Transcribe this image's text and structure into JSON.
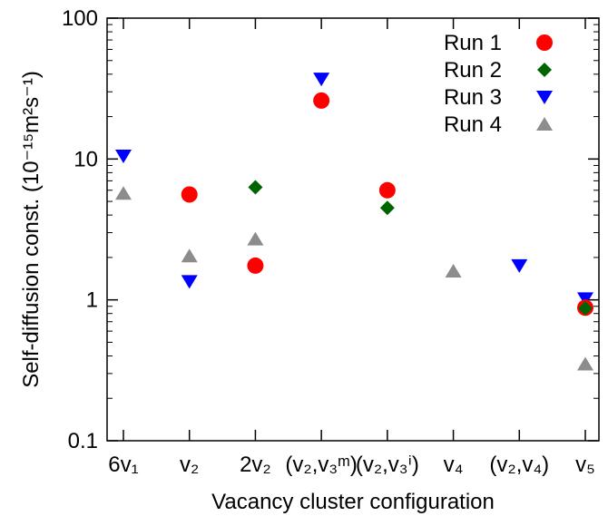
{
  "chart_data": {
    "type": "scatter",
    "title": "",
    "xlabel": "Vacancy cluster configuration",
    "ylabel": "Self-diffusion const. (10⁻¹⁵m²s⁻¹)",
    "y_scale": "log",
    "ylim": [
      0.1,
      100
    ],
    "y_ticks": [
      {
        "value": 0.1,
        "label": "0.1"
      },
      {
        "value": 1,
        "label": "1"
      },
      {
        "value": 10,
        "label": "10"
      },
      {
        "value": 100,
        "label": "100"
      }
    ],
    "categories": [
      "6v₁",
      "v₂",
      "2v₂",
      "(v₂,v₃ᵐ)",
      "(v₂,v₃ⁱ)",
      "v₄",
      "(v₂,v₄)",
      "v₅"
    ],
    "grid": false,
    "legend_position": "top-right",
    "series": [
      {
        "name": "Run 1",
        "marker": "circle",
        "color": "#ff0000",
        "values": [
          null,
          5.6,
          1.75,
          26,
          6.0,
          null,
          null,
          0.88
        ]
      },
      {
        "name": "Run 2",
        "marker": "diamond",
        "color": "#006400",
        "values": [
          null,
          null,
          6.3,
          null,
          4.5,
          null,
          null,
          0.87
        ]
      },
      {
        "name": "Run 3",
        "marker": "triangle-down",
        "color": "#0000ff",
        "values": [
          10.5,
          1.35,
          null,
          37,
          null,
          null,
          1.75,
          1.02
        ]
      },
      {
        "name": "Run 4",
        "marker": "triangle-up",
        "color": "#8c8c8c",
        "values": [
          5.7,
          2.05,
          2.7,
          null,
          null,
          1.6,
          null,
          0.35
        ]
      }
    ]
  }
}
